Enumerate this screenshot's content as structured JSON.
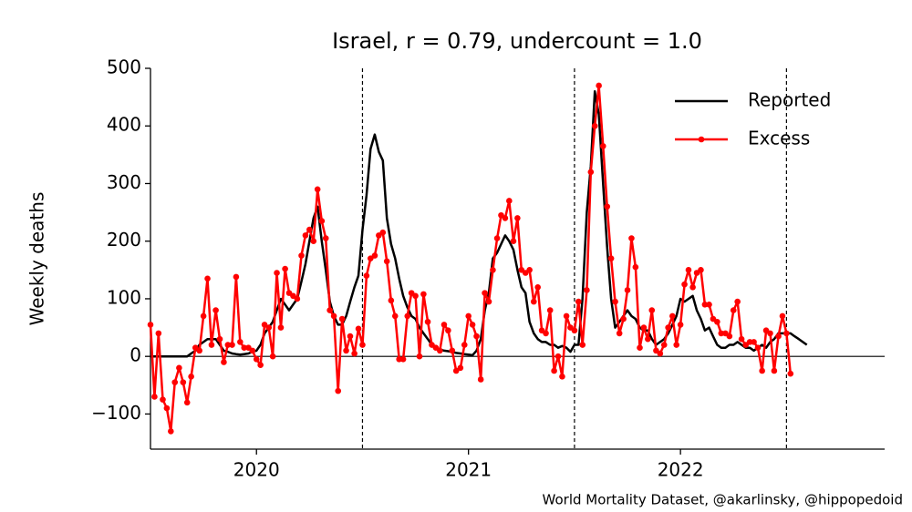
{
  "chart_data": {
    "type": "line",
    "title": "Israel, r = 0.79, undercount = 1.0",
    "ylabel": "Weekly deaths",
    "footnote": "World Mortality Dataset, @akarlinsky, @hippopedoid",
    "xlim": [
      2019.5,
      2022.963
    ],
    "xticks": [
      2020,
      2021,
      2022
    ],
    "ylim": [
      -161,
      500
    ],
    "yticks": [
      {
        "value": -100,
        "label": "−100"
      },
      0,
      100,
      200,
      300,
      400,
      500
    ],
    "vlines": [
      2020.5,
      2021.5,
      2022.5
    ],
    "legend": "upper right",
    "x": [
      2019.5,
      2019.519,
      2019.538,
      2019.558,
      2019.577,
      2019.596,
      2019.615,
      2019.635,
      2019.654,
      2019.673,
      2019.692,
      2019.712,
      2019.731,
      2019.75,
      2019.769,
      2019.788,
      2019.808,
      2019.827,
      2019.846,
      2019.865,
      2019.885,
      2019.904,
      2019.923,
      2019.942,
      2019.962,
      2019.981,
      2020.0,
      2020.019,
      2020.038,
      2020.058,
      2020.077,
      2020.096,
      2020.115,
      2020.135,
      2020.154,
      2020.173,
      2020.192,
      2020.212,
      2020.231,
      2020.25,
      2020.269,
      2020.288,
      2020.308,
      2020.327,
      2020.346,
      2020.365,
      2020.385,
      2020.404,
      2020.423,
      2020.442,
      2020.462,
      2020.481,
      2020.5,
      2020.519,
      2020.538,
      2020.558,
      2020.577,
      2020.596,
      2020.615,
      2020.635,
      2020.654,
      2020.673,
      2020.692,
      2020.712,
      2020.731,
      2020.75,
      2020.769,
      2020.788,
      2020.808,
      2020.827,
      2020.846,
      2020.865,
      2020.885,
      2020.904,
      2020.923,
      2020.942,
      2020.962,
      2020.981,
      2021.0,
      2021.019,
      2021.038,
      2021.058,
      2021.077,
      2021.096,
      2021.115,
      2021.135,
      2021.154,
      2021.173,
      2021.192,
      2021.212,
      2021.231,
      2021.25,
      2021.269,
      2021.288,
      2021.308,
      2021.327,
      2021.346,
      2021.365,
      2021.385,
      2021.404,
      2021.423,
      2021.442,
      2021.462,
      2021.481,
      2021.5,
      2021.519,
      2021.538,
      2021.558,
      2021.577,
      2021.596,
      2021.615,
      2021.635,
      2021.654,
      2021.673,
      2021.692,
      2021.712,
      2021.731,
      2021.75,
      2021.769,
      2021.788,
      2021.808,
      2021.827,
      2021.846,
      2021.865,
      2021.885,
      2021.904,
      2021.923,
      2021.942,
      2021.962,
      2021.981,
      2022.0,
      2022.019,
      2022.038,
      2022.058,
      2022.077,
      2022.096,
      2022.115,
      2022.135,
      2022.154,
      2022.173,
      2022.192,
      2022.212,
      2022.231,
      2022.25,
      2022.269,
      2022.288,
      2022.308,
      2022.327,
      2022.346,
      2022.365,
      2022.385,
      2022.404,
      2022.423,
      2022.442,
      2022.462,
      2022.481,
      2022.5,
      2022.519,
      2022.538,
      2022.558,
      2022.577,
      2022.596
    ],
    "series": [
      {
        "name": "Reported",
        "color": "#000000",
        "marker": false,
        "values": [
          0,
          0,
          0,
          0,
          0,
          0,
          0,
          0,
          0,
          0,
          5,
          10,
          20,
          25,
          30,
          30,
          30,
          20,
          10,
          8,
          5,
          4,
          3,
          4,
          5,
          8,
          10,
          20,
          40,
          50,
          60,
          80,
          100,
          90,
          80,
          90,
          100,
          130,
          160,
          200,
          240,
          260,
          200,
          150,
          95,
          70,
          55,
          55,
          70,
          95,
          120,
          140,
          220,
          280,
          360,
          385,
          355,
          340,
          240,
          195,
          170,
          135,
          105,
          85,
          70,
          65,
          50,
          40,
          30,
          20,
          15,
          12,
          10,
          9,
          8,
          6,
          5,
          4,
          3,
          2,
          10,
          30,
          80,
          110,
          170,
          180,
          195,
          210,
          200,
          185,
          150,
          120,
          110,
          60,
          40,
          30,
          25,
          25,
          20,
          20,
          15,
          18,
          15,
          8,
          20,
          20,
          100,
          250,
          330,
          460,
          420,
          300,
          190,
          100,
          50,
          60,
          70,
          80,
          70,
          65,
          50,
          45,
          45,
          30,
          20,
          25,
          30,
          40,
          55,
          70,
          100,
          95,
          100,
          105,
          80,
          65,
          45,
          50,
          35,
          20,
          15,
          15,
          20,
          20,
          25,
          20,
          15,
          15,
          10,
          15,
          20,
          15,
          25,
          30,
          40,
          40,
          40,
          40,
          35,
          30,
          25,
          20
        ]
      },
      {
        "name": "Excess",
        "color": "#ff0000",
        "marker": true,
        "values": [
          55,
          -70,
          40,
          -75,
          -90,
          -130,
          -45,
          -20,
          -45,
          -80,
          -35,
          15,
          10,
          70,
          135,
          20,
          80,
          30,
          -10,
          20,
          20,
          138,
          25,
          15,
          15,
          10,
          -5,
          -15,
          55,
          50,
          0,
          145,
          50,
          152,
          110,
          105,
          100,
          175,
          210,
          220,
          200,
          290,
          235,
          205,
          80,
          70,
          -60,
          65,
          10,
          35,
          5,
          48,
          20,
          140,
          170,
          175,
          210,
          215,
          165,
          97,
          70,
          -5,
          -5,
          70,
          110,
          105,
          0,
          108,
          60,
          20,
          15,
          10,
          55,
          45,
          10,
          -25,
          -20,
          20,
          70,
          55,
          35,
          -40,
          110,
          95,
          150,
          205,
          245,
          240,
          270,
          200,
          240,
          150,
          145,
          150,
          95,
          120,
          45,
          40,
          80,
          -25,
          0,
          -35,
          70,
          50,
          45,
          95,
          20,
          115,
          320,
          400,
          470,
          365,
          260,
          170,
          95,
          40,
          65,
          115,
          205,
          155,
          15,
          50,
          30,
          80,
          10,
          5,
          20,
          50,
          70,
          20,
          55,
          125,
          150,
          120,
          145,
          150,
          90,
          90,
          65,
          60,
          40,
          40,
          35,
          80,
          95,
          30,
          20,
          25,
          25,
          15,
          -25,
          45,
          40,
          -25,
          35,
          70,
          40,
          -30,
          null,
          null,
          null,
          null
        ]
      }
    ]
  }
}
